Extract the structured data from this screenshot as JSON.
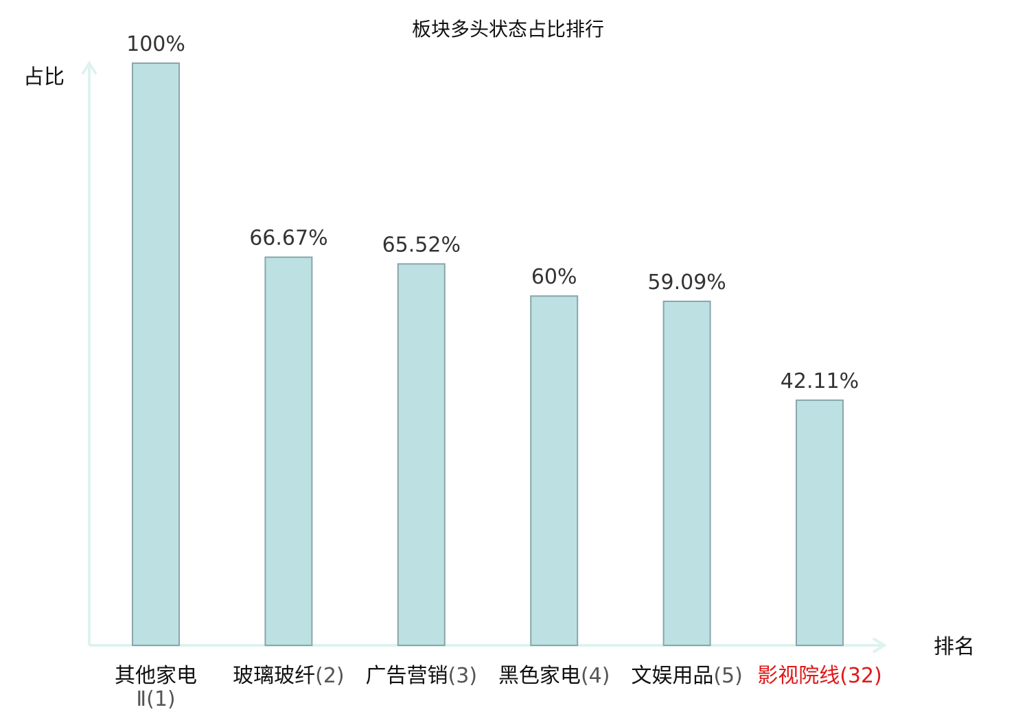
{
  "chart_data": {
    "type": "bar",
    "title": "板块多头状态占比排行",
    "ylabel": "占比",
    "xlabel": "排名",
    "ylim": [
      0,
      100
    ],
    "grid": false,
    "legend": "none",
    "categories": [
      "其他家电Ⅱ",
      "玻璃玻纤",
      "广告营销",
      "黑色家电",
      "文娱用品",
      "影视院线"
    ],
    "ranks": [
      "(1)",
      "(2)",
      "(3)",
      "(4)",
      "(5)",
      "(32)"
    ],
    "values": [
      100,
      66.67,
      65.52,
      60,
      59.09,
      42.11
    ],
    "value_labels": [
      "100%",
      "66.67%",
      "65.52%",
      "60%",
      "59.09%",
      "42.11%"
    ],
    "highlight_index": 5,
    "colors": {
      "bar_fill": "#bde0e2",
      "bar_stroke": "#87a7aa",
      "axis": "#dff2ef",
      "highlight": "#e01818"
    }
  }
}
